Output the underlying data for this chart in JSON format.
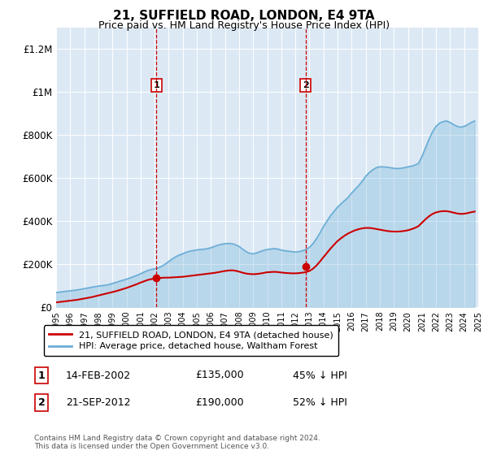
{
  "title": "21, SUFFIELD ROAD, LONDON, E4 9TA",
  "subtitle": "Price paid vs. HM Land Registry's House Price Index (HPI)",
  "hpi_years": [
    1995,
    1995.25,
    1995.5,
    1995.75,
    1996,
    1996.25,
    1996.5,
    1996.75,
    1997,
    1997.25,
    1997.5,
    1997.75,
    1998,
    1998.25,
    1998.5,
    1998.75,
    1999,
    1999.25,
    1999.5,
    1999.75,
    2000,
    2000.25,
    2000.5,
    2000.75,
    2001,
    2001.25,
    2001.5,
    2001.75,
    2002,
    2002.25,
    2002.5,
    2002.75,
    2003,
    2003.25,
    2003.5,
    2003.75,
    2004,
    2004.25,
    2004.5,
    2004.75,
    2005,
    2005.25,
    2005.5,
    2005.75,
    2006,
    2006.25,
    2006.5,
    2006.75,
    2007,
    2007.25,
    2007.5,
    2007.75,
    2008,
    2008.25,
    2008.5,
    2008.75,
    2009,
    2009.25,
    2009.5,
    2009.75,
    2010,
    2010.25,
    2010.5,
    2010.75,
    2011,
    2011.25,
    2011.5,
    2011.75,
    2012,
    2012.25,
    2012.5,
    2012.75,
    2013,
    2013.25,
    2013.5,
    2013.75,
    2014,
    2014.25,
    2014.5,
    2014.75,
    2015,
    2015.25,
    2015.5,
    2015.75,
    2016,
    2016.25,
    2016.5,
    2016.75,
    2017,
    2017.25,
    2017.5,
    2017.75,
    2018,
    2018.25,
    2018.5,
    2018.75,
    2019,
    2019.25,
    2019.5,
    2019.75,
    2020,
    2020.25,
    2020.5,
    2020.75,
    2021,
    2021.25,
    2021.5,
    2021.75,
    2022,
    2022.25,
    2022.5,
    2022.75,
    2023,
    2023.25,
    2023.5,
    2023.75,
    2024,
    2024.25,
    2024.5,
    2024.75
  ],
  "hpi_values": [
    68000,
    70000,
    72000,
    74000,
    76000,
    78000,
    80000,
    83000,
    86000,
    89000,
    92000,
    95000,
    98000,
    100000,
    102000,
    105000,
    110000,
    115000,
    120000,
    125000,
    130000,
    136000,
    142000,
    148000,
    155000,
    163000,
    170000,
    175000,
    178000,
    182000,
    190000,
    200000,
    212000,
    224000,
    234000,
    242000,
    248000,
    255000,
    260000,
    263000,
    266000,
    268000,
    269000,
    272000,
    276000,
    282000,
    288000,
    292000,
    295000,
    296000,
    295000,
    290000,
    282000,
    270000,
    258000,
    250000,
    248000,
    252000,
    258000,
    264000,
    268000,
    270000,
    272000,
    270000,
    265000,
    262000,
    260000,
    258000,
    256000,
    258000,
    262000,
    268000,
    278000,
    295000,
    318000,
    345000,
    375000,
    400000,
    425000,
    445000,
    465000,
    480000,
    495000,
    510000,
    530000,
    548000,
    565000,
    585000,
    608000,
    625000,
    638000,
    648000,
    652000,
    652000,
    650000,
    648000,
    645000,
    644000,
    645000,
    648000,
    652000,
    655000,
    660000,
    668000,
    700000,
    740000,
    780000,
    815000,
    840000,
    855000,
    862000,
    865000,
    858000,
    848000,
    840000,
    836000,
    840000,
    848000,
    858000,
    865000
  ],
  "price_years": [
    1995,
    1995.25,
    1995.5,
    1995.75,
    1996,
    1996.25,
    1996.5,
    1996.75,
    1997,
    1997.25,
    1997.5,
    1997.75,
    1998,
    1998.25,
    1998.5,
    1998.75,
    1999,
    1999.25,
    1999.5,
    1999.75,
    2000,
    2000.25,
    2000.5,
    2000.75,
    2001,
    2001.25,
    2001.5,
    2001.75,
    2002,
    2002.25,
    2002.5,
    2002.75,
    2003,
    2003.25,
    2003.5,
    2003.75,
    2004,
    2004.25,
    2004.5,
    2004.75,
    2005,
    2005.25,
    2005.5,
    2005.75,
    2006,
    2006.25,
    2006.5,
    2006.75,
    2007,
    2007.25,
    2007.5,
    2007.75,
    2008,
    2008.25,
    2008.5,
    2008.75,
    2009,
    2009.25,
    2009.5,
    2009.75,
    2010,
    2010.25,
    2010.5,
    2010.75,
    2011,
    2011.25,
    2011.5,
    2011.75,
    2012,
    2012.25,
    2012.5,
    2012.75,
    2013,
    2013.25,
    2013.5,
    2013.75,
    2014,
    2014.25,
    2014.5,
    2014.75,
    2015,
    2015.25,
    2015.5,
    2015.75,
    2016,
    2016.25,
    2016.5,
    2016.75,
    2017,
    2017.25,
    2017.5,
    2017.75,
    2018,
    2018.25,
    2018.5,
    2018.75,
    2019,
    2019.25,
    2019.5,
    2019.75,
    2020,
    2020.25,
    2020.5,
    2020.75,
    2021,
    2021.25,
    2021.5,
    2021.75,
    2022,
    2022.25,
    2022.5,
    2022.75,
    2023,
    2023.25,
    2023.5,
    2023.75,
    2024,
    2024.25,
    2024.5,
    2024.75
  ],
  "price_values": [
    22000,
    24000,
    26000,
    28000,
    30000,
    32000,
    34000,
    37000,
    40000,
    43000,
    46000,
    50000,
    54000,
    58000,
    62000,
    66000,
    70000,
    74000,
    79000,
    84000,
    89000,
    95000,
    101000,
    107000,
    114000,
    120000,
    126000,
    130000,
    133000,
    135000,
    136000,
    137000,
    137000,
    138000,
    139000,
    140000,
    141000,
    143000,
    145000,
    147000,
    149000,
    151000,
    153000,
    155000,
    157000,
    159000,
    162000,
    165000,
    168000,
    170000,
    171000,
    169000,
    165000,
    160000,
    156000,
    154000,
    153000,
    154000,
    156000,
    159000,
    162000,
    163000,
    164000,
    163000,
    161000,
    159000,
    158000,
    157000,
    157000,
    158000,
    160000,
    163000,
    168000,
    178000,
    193000,
    212000,
    232000,
    252000,
    272000,
    290000,
    307000,
    320000,
    332000,
    342000,
    350000,
    357000,
    362000,
    366000,
    368000,
    368000,
    366000,
    363000,
    360000,
    357000,
    354000,
    352000,
    351000,
    351000,
    352000,
    354000,
    357000,
    362000,
    368000,
    376000,
    392000,
    408000,
    422000,
    433000,
    440000,
    444000,
    446000,
    446000,
    443000,
    439000,
    435000,
    433000,
    434000,
    437000,
    441000,
    444000
  ],
  "sale1_year": 2002.12,
  "sale1_price": 135000,
  "sale1_label": "1",
  "sale1_date": "14-FEB-2002",
  "sale1_pct": "45% ↓ HPI",
  "sale2_year": 2012.72,
  "sale2_price": 190000,
  "sale2_label": "2",
  "sale2_date": "21-SEP-2012",
  "sale2_pct": "52% ↓ HPI",
  "hpi_color": "#6baed6",
  "price_color": "#cc0000",
  "vline_color": "#cc0000",
  "bg_color": "#dce9f5",
  "legend1": "21, SUFFIELD ROAD, LONDON, E4 9TA (detached house)",
  "legend2": "HPI: Average price, detached house, Waltham Forest",
  "footer": "Contains HM Land Registry data © Crown copyright and database right 2024.\nThis data is licensed under the Open Government Licence v3.0.",
  "ylim": [
    0,
    1300000
  ],
  "xlim": [
    1995,
    2025
  ],
  "yticks": [
    0,
    200000,
    400000,
    600000,
    800000,
    1000000,
    1200000
  ],
  "ytick_labels": [
    "£0",
    "£200K",
    "£400K",
    "£600K",
    "£800K",
    "£1M",
    "£1.2M"
  ],
  "xticks": [
    1995,
    1996,
    1997,
    1998,
    1999,
    2000,
    2001,
    2002,
    2003,
    2004,
    2005,
    2006,
    2007,
    2008,
    2009,
    2010,
    2011,
    2012,
    2013,
    2014,
    2015,
    2016,
    2017,
    2018,
    2019,
    2020,
    2021,
    2022,
    2023,
    2024,
    2025
  ]
}
